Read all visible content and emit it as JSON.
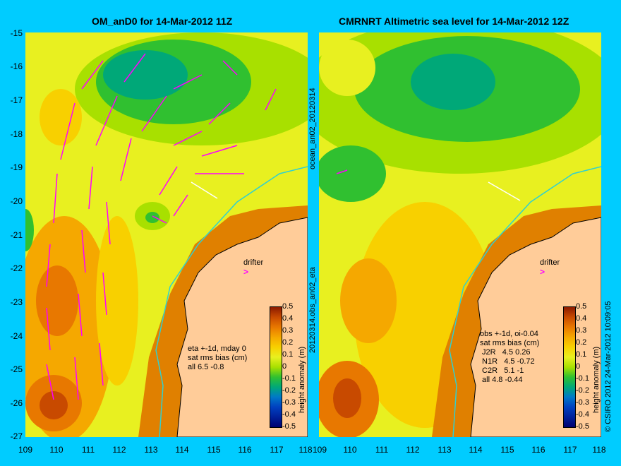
{
  "left_panel": {
    "title": "OM_anD0 for 14-Mar-2012 11Z",
    "y_ticks": [
      "-15",
      "-16",
      "-17",
      "-18",
      "-19",
      "-20",
      "-21",
      "-22",
      "-23",
      "-24",
      "-25",
      "-26",
      "-27"
    ],
    "x_ticks": [
      "109",
      "110",
      "111",
      "112",
      "113",
      "114",
      "115",
      "116",
      "117",
      "118"
    ],
    "note": "eta +-1d, mday 0\nsat rms bias (cm)\nall 6.5 -0.8",
    "drifter_label": "drifter"
  },
  "right_panel": {
    "title": "CMRNRT Altimetric sea level  for 14-Mar-2012 12Z",
    "x_ticks": [
      "109",
      "110",
      "111",
      "112",
      "113",
      "114",
      "115",
      "116",
      "117",
      "118"
    ],
    "note": "obs +-1d, oi-0.04\nsat rms bias (cm)\n J2R   4.5 0.26\n N1R   4.5 -0.72\n C2R   5.1 -1\n all 4.8 -0.44",
    "drifter_label": "drifter"
  },
  "middle_vertical_labels": {
    "upper": "ocean_an02_20120314",
    "lower": "20120314.obs_an02_eta"
  },
  "right_edge_label": "© CSIRO 2012  24-Mar-2012 10:09:05",
  "colorbar": {
    "title": "height anomaly (m)",
    "ticks": [
      "0.5",
      "0.4",
      "0.3",
      "0.2",
      "0.1",
      "0",
      "-0.1",
      "-0.2",
      "-0.3",
      "-0.4",
      "-0.5"
    ],
    "colors": [
      "#8b1a00",
      "#c84a00",
      "#e87800",
      "#f5a800",
      "#f8d000",
      "#e8f020",
      "#a8e000",
      "#30c030",
      "#00a878",
      "#0078c8",
      "#0040c0",
      "#00209a",
      "#000070"
    ]
  },
  "map_colors": {
    "land": "#ffcc99",
    "coast_shelf": "#e08000",
    "vectors": "#ff00ff",
    "coastline": "#000000",
    "isobath": "#30d0d0"
  }
}
